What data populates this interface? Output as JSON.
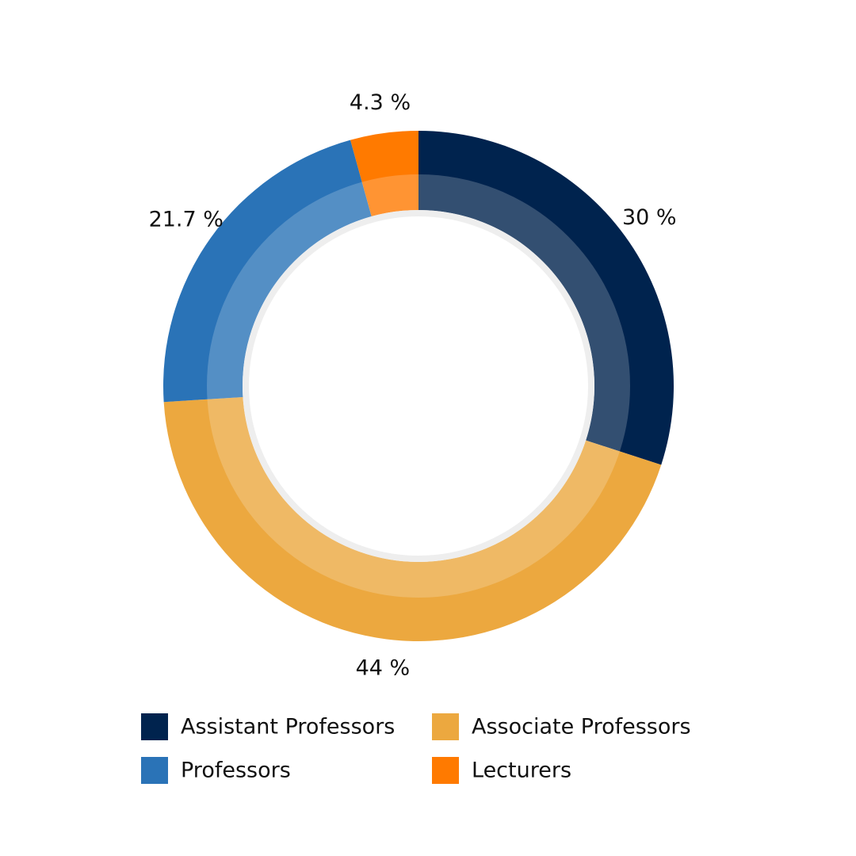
{
  "chart_data": {
    "type": "donut",
    "categories": [
      "Assistant Professors",
      "Associate Professors",
      "Professors",
      "Lecturers"
    ],
    "values": [
      30,
      44,
      21.7,
      4.3
    ],
    "value_labels": [
      "30 %",
      "44 %",
      "21.7 %",
      "4.3 %"
    ],
    "colors": [
      "#00234e",
      "#eca83f",
      "#2a73b7",
      "#ff7a00"
    ]
  }
}
